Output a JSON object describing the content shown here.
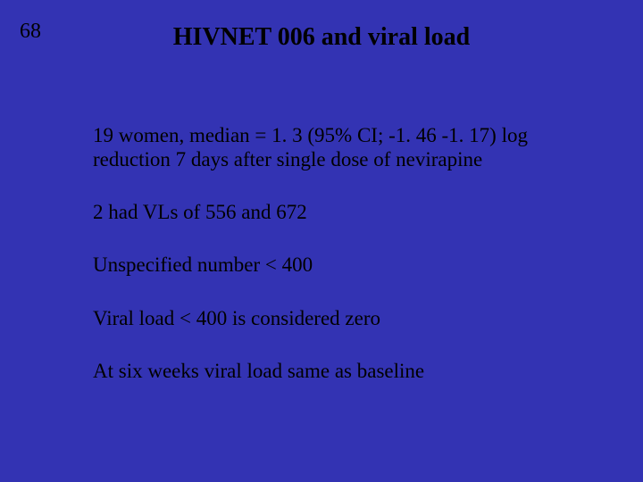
{
  "slide": {
    "background_color": "#3333b3",
    "text_color": "#000000",
    "page_number": "68",
    "title": "HIVNET 006 and viral load",
    "title_fontsize": 28,
    "body_fontsize": 23,
    "paragraphs": [
      "19 women, median = 1. 3 (95% CI; -1. 46 -1. 17) log reduction 7 days after single dose of nevirapine",
      "2 had VLs of 556 and 672",
      "Unspecified number  < 400",
      "Viral load < 400 is considered zero",
      "At six weeks viral load same as baseline"
    ]
  }
}
